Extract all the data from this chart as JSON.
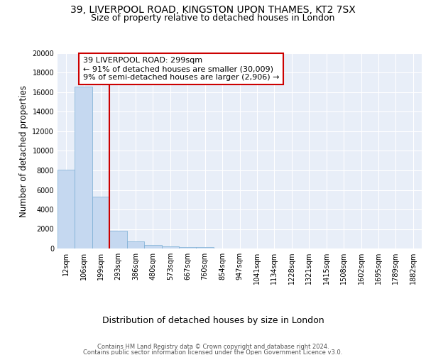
{
  "title1": "39, LIVERPOOL ROAD, KINGSTON UPON THAMES, KT2 7SX",
  "title2": "Size of property relative to detached houses in London",
  "xlabel": "Distribution of detached houses by size in London",
  "ylabel": "Number of detached properties",
  "categories": [
    "12sqm",
    "106sqm",
    "199sqm",
    "293sqm",
    "386sqm",
    "480sqm",
    "573sqm",
    "667sqm",
    "760sqm",
    "854sqm",
    "947sqm",
    "1041sqm",
    "1134sqm",
    "1228sqm",
    "1321sqm",
    "1415sqm",
    "1508sqm",
    "1602sqm",
    "1695sqm",
    "1789sqm",
    "1882sqm"
  ],
  "values": [
    8100,
    16600,
    5300,
    1800,
    700,
    350,
    200,
    150,
    110,
    0,
    0,
    0,
    0,
    0,
    0,
    0,
    0,
    0,
    0,
    0,
    0
  ],
  "bar_color": "#c5d8f0",
  "bar_edge_color": "#7aadd4",
  "bg_color": "#e8eef8",
  "grid_color": "#ffffff",
  "red_line_x": 3.0,
  "annotation_title": "39 LIVERPOOL ROAD: 299sqm",
  "annotation_line1": "← 91% of detached houses are smaller (30,009)",
  "annotation_line2": "9% of semi-detached houses are larger (2,906) →",
  "annotation_box_color": "#ffffff",
  "annotation_border_color": "#cc0000",
  "red_line_color": "#cc0000",
  "ylim": [
    0,
    20000
  ],
  "yticks": [
    0,
    2000,
    4000,
    6000,
    8000,
    10000,
    12000,
    14000,
    16000,
    18000,
    20000
  ],
  "footer1": "Contains HM Land Registry data © Crown copyright and database right 2024.",
  "footer2": "Contains public sector information licensed under the Open Government Licence v3.0.",
  "title_fontsize": 10,
  "subtitle_fontsize": 9,
  "tick_fontsize": 7,
  "ylabel_fontsize": 8.5,
  "xlabel_fontsize": 9,
  "annotation_fontsize": 8,
  "footer_fontsize": 6
}
